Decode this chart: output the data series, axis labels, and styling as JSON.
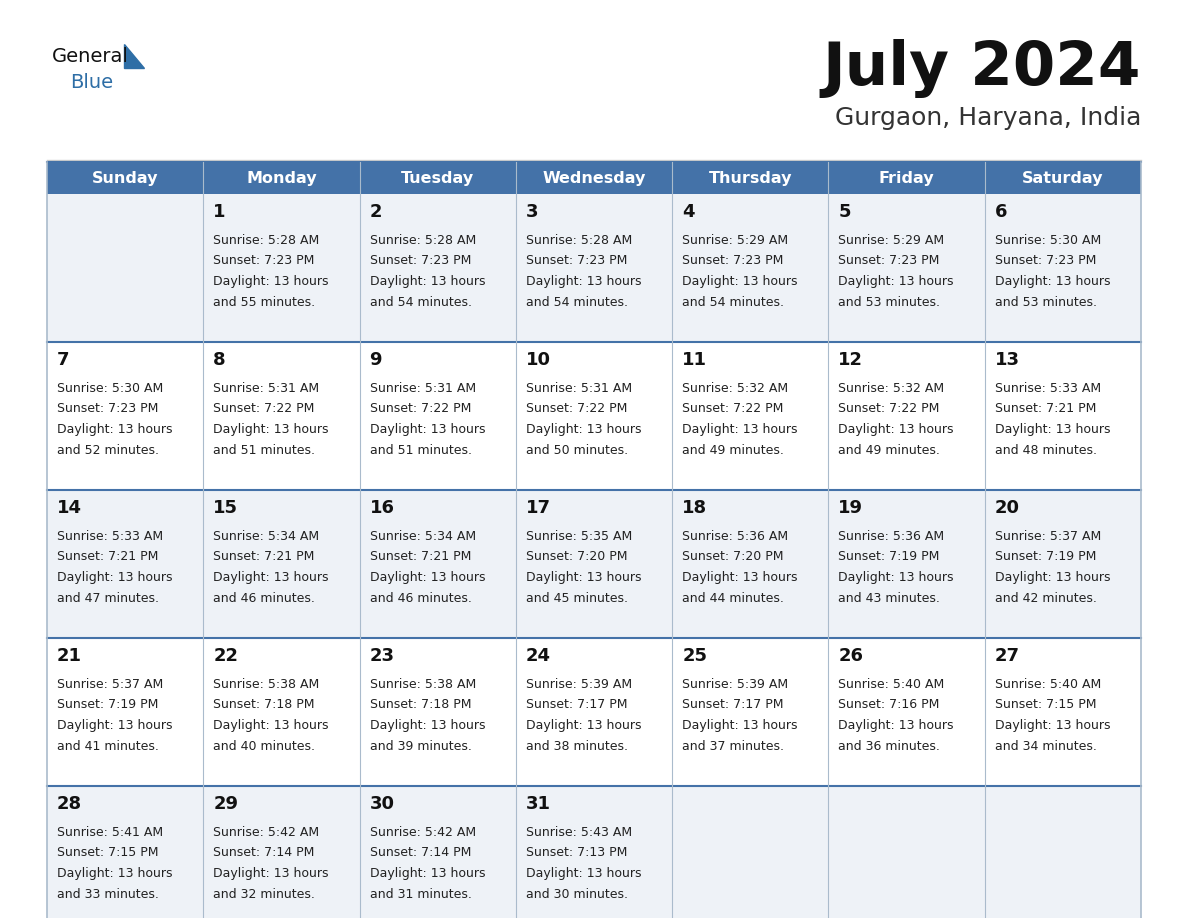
{
  "title": "July 2024",
  "subtitle": "Gurgaon, Haryana, India",
  "days_of_week": [
    "Sunday",
    "Monday",
    "Tuesday",
    "Wednesday",
    "Thursday",
    "Friday",
    "Saturday"
  ],
  "header_bg": "#4472A8",
  "header_text": "#FFFFFF",
  "row_bg_odd": "#EEF2F7",
  "row_bg_even": "#FFFFFF",
  "cell_border": "#AABBCC",
  "row_border": "#4472A8",
  "day_number_color": "#111111",
  "cell_text_color": "#222222",
  "title_color": "#111111",
  "subtitle_color": "#333333",
  "logo_general_color": "#111111",
  "logo_blue_color": "#2E6EA6",
  "weeks": [
    [
      {
        "day": "",
        "sunrise": "",
        "sunset": "",
        "daylight": ""
      },
      {
        "day": "1",
        "sunrise": "5:28 AM",
        "sunset": "7:23 PM",
        "daylight": "13 hours and 55 minutes."
      },
      {
        "day": "2",
        "sunrise": "5:28 AM",
        "sunset": "7:23 PM",
        "daylight": "13 hours and 54 minutes."
      },
      {
        "day": "3",
        "sunrise": "5:28 AM",
        "sunset": "7:23 PM",
        "daylight": "13 hours and 54 minutes."
      },
      {
        "day": "4",
        "sunrise": "5:29 AM",
        "sunset": "7:23 PM",
        "daylight": "13 hours and 54 minutes."
      },
      {
        "day": "5",
        "sunrise": "5:29 AM",
        "sunset": "7:23 PM",
        "daylight": "13 hours and 53 minutes."
      },
      {
        "day": "6",
        "sunrise": "5:30 AM",
        "sunset": "7:23 PM",
        "daylight": "13 hours and 53 minutes."
      }
    ],
    [
      {
        "day": "7",
        "sunrise": "5:30 AM",
        "sunset": "7:23 PM",
        "daylight": "13 hours and 52 minutes."
      },
      {
        "day": "8",
        "sunrise": "5:31 AM",
        "sunset": "7:22 PM",
        "daylight": "13 hours and 51 minutes."
      },
      {
        "day": "9",
        "sunrise": "5:31 AM",
        "sunset": "7:22 PM",
        "daylight": "13 hours and 51 minutes."
      },
      {
        "day": "10",
        "sunrise": "5:31 AM",
        "sunset": "7:22 PM",
        "daylight": "13 hours and 50 minutes."
      },
      {
        "day": "11",
        "sunrise": "5:32 AM",
        "sunset": "7:22 PM",
        "daylight": "13 hours and 49 minutes."
      },
      {
        "day": "12",
        "sunrise": "5:32 AM",
        "sunset": "7:22 PM",
        "daylight": "13 hours and 49 minutes."
      },
      {
        "day": "13",
        "sunrise": "5:33 AM",
        "sunset": "7:21 PM",
        "daylight": "13 hours and 48 minutes."
      }
    ],
    [
      {
        "day": "14",
        "sunrise": "5:33 AM",
        "sunset": "7:21 PM",
        "daylight": "13 hours and 47 minutes."
      },
      {
        "day": "15",
        "sunrise": "5:34 AM",
        "sunset": "7:21 PM",
        "daylight": "13 hours and 46 minutes."
      },
      {
        "day": "16",
        "sunrise": "5:34 AM",
        "sunset": "7:21 PM",
        "daylight": "13 hours and 46 minutes."
      },
      {
        "day": "17",
        "sunrise": "5:35 AM",
        "sunset": "7:20 PM",
        "daylight": "13 hours and 45 minutes."
      },
      {
        "day": "18",
        "sunrise": "5:36 AM",
        "sunset": "7:20 PM",
        "daylight": "13 hours and 44 minutes."
      },
      {
        "day": "19",
        "sunrise": "5:36 AM",
        "sunset": "7:19 PM",
        "daylight": "13 hours and 43 minutes."
      },
      {
        "day": "20",
        "sunrise": "5:37 AM",
        "sunset": "7:19 PM",
        "daylight": "13 hours and 42 minutes."
      }
    ],
    [
      {
        "day": "21",
        "sunrise": "5:37 AM",
        "sunset": "7:19 PM",
        "daylight": "13 hours and 41 minutes."
      },
      {
        "day": "22",
        "sunrise": "5:38 AM",
        "sunset": "7:18 PM",
        "daylight": "13 hours and 40 minutes."
      },
      {
        "day": "23",
        "sunrise": "5:38 AM",
        "sunset": "7:18 PM",
        "daylight": "13 hours and 39 minutes."
      },
      {
        "day": "24",
        "sunrise": "5:39 AM",
        "sunset": "7:17 PM",
        "daylight": "13 hours and 38 minutes."
      },
      {
        "day": "25",
        "sunrise": "5:39 AM",
        "sunset": "7:17 PM",
        "daylight": "13 hours and 37 minutes."
      },
      {
        "day": "26",
        "sunrise": "5:40 AM",
        "sunset": "7:16 PM",
        "daylight": "13 hours and 36 minutes."
      },
      {
        "day": "27",
        "sunrise": "5:40 AM",
        "sunset": "7:15 PM",
        "daylight": "13 hours and 34 minutes."
      }
    ],
    [
      {
        "day": "28",
        "sunrise": "5:41 AM",
        "sunset": "7:15 PM",
        "daylight": "13 hours and 33 minutes."
      },
      {
        "day": "29",
        "sunrise": "5:42 AM",
        "sunset": "7:14 PM",
        "daylight": "13 hours and 32 minutes."
      },
      {
        "day": "30",
        "sunrise": "5:42 AM",
        "sunset": "7:14 PM",
        "daylight": "13 hours and 31 minutes."
      },
      {
        "day": "31",
        "sunrise": "5:43 AM",
        "sunset": "7:13 PM",
        "daylight": "13 hours and 30 minutes."
      },
      {
        "day": "",
        "sunrise": "",
        "sunset": "",
        "daylight": ""
      },
      {
        "day": "",
        "sunrise": "",
        "sunset": "",
        "daylight": ""
      },
      {
        "day": "",
        "sunrise": "",
        "sunset": "",
        "daylight": ""
      }
    ]
  ],
  "fig_width": 11.88,
  "fig_height": 9.18,
  "dpi": 100
}
